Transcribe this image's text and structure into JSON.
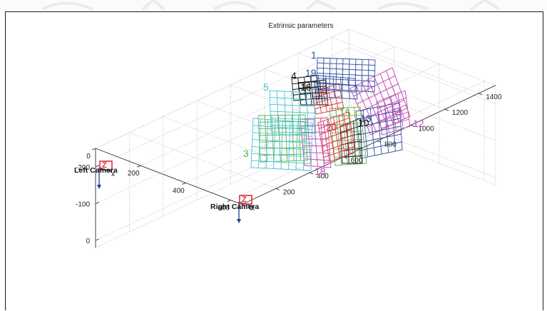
{
  "chart_data": {
    "type": "scatter",
    "title": "Extrinsic parameters",
    "xlabel": "",
    "ylabel": "",
    "zlabel": "",
    "grid": true,
    "x_axis": {
      "ticks": [
        0,
        200,
        400,
        600
      ],
      "range": [
        0,
        650
      ]
    },
    "y_axis": {
      "ticks": [
        0,
        200,
        400,
        600,
        800,
        1000,
        1200,
        1400
      ],
      "range": [
        0,
        1500
      ]
    },
    "z_axis": {
      "ticks": [
        0,
        -100,
        -200
      ],
      "range": [
        -250,
        20
      ]
    },
    "cameras": [
      {
        "name": "Left Camera",
        "axis_label": "Z"
      },
      {
        "name": "Right Camera",
        "axis_label": "Z"
      }
    ],
    "boards": [
      {
        "id": "1",
        "color": "#2e4fa3"
      },
      {
        "id": "19",
        "color": "#2e4fa3"
      },
      {
        "id": "2",
        "color": "#c046b0"
      },
      {
        "id": "12",
        "color": "#c046b0"
      },
      {
        "id": "4",
        "color": "#111111"
      },
      {
        "id": "16",
        "color": "#111111"
      },
      {
        "id": "5",
        "color": "#45c4d6"
      },
      {
        "id": "3",
        "color": "#5fb245"
      },
      {
        "id": "8",
        "color": "#e0303a"
      },
      {
        "id": "15",
        "color": "#5fb245"
      },
      {
        "id": "13",
        "color": "#2e4fa3"
      },
      {
        "id": "10",
        "color": "#111111"
      },
      {
        "id": "20",
        "color": "#e0303a"
      },
      {
        "id": "18",
        "color": "#c046b0"
      }
    ]
  }
}
